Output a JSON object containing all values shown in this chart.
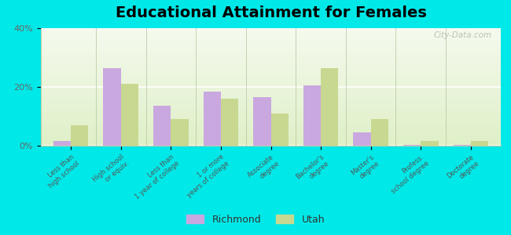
{
  "title": "Educational Attainment for Females",
  "categories": [
    "Less than\nhigh school",
    "High school\nor equiv.",
    "Less than\n1 year of college",
    "1 or more\nyears of college",
    "Associate\ndegree",
    "Bachelor's\ndegree",
    "Master's\ndegree",
    "Profess.\nschool degree",
    "Doctorate\ndegree"
  ],
  "richmond": [
    1.5,
    26.5,
    13.5,
    18.5,
    16.5,
    20.5,
    4.5,
    0.3,
    0.3
  ],
  "utah": [
    7.0,
    21.0,
    9.0,
    16.0,
    11.0,
    26.5,
    9.0,
    1.5,
    1.5
  ],
  "richmond_color": "#c9a8e0",
  "utah_color": "#c8d890",
  "outer_bg": "#00e8e8",
  "ylim": [
    0,
    40
  ],
  "yticks": [
    0,
    20,
    40
  ],
  "ytick_labels": [
    "0%",
    "20%",
    "40%"
  ],
  "title_fontsize": 14,
  "legend_labels": [
    "Richmond",
    "Utah"
  ],
  "bar_width": 0.35
}
